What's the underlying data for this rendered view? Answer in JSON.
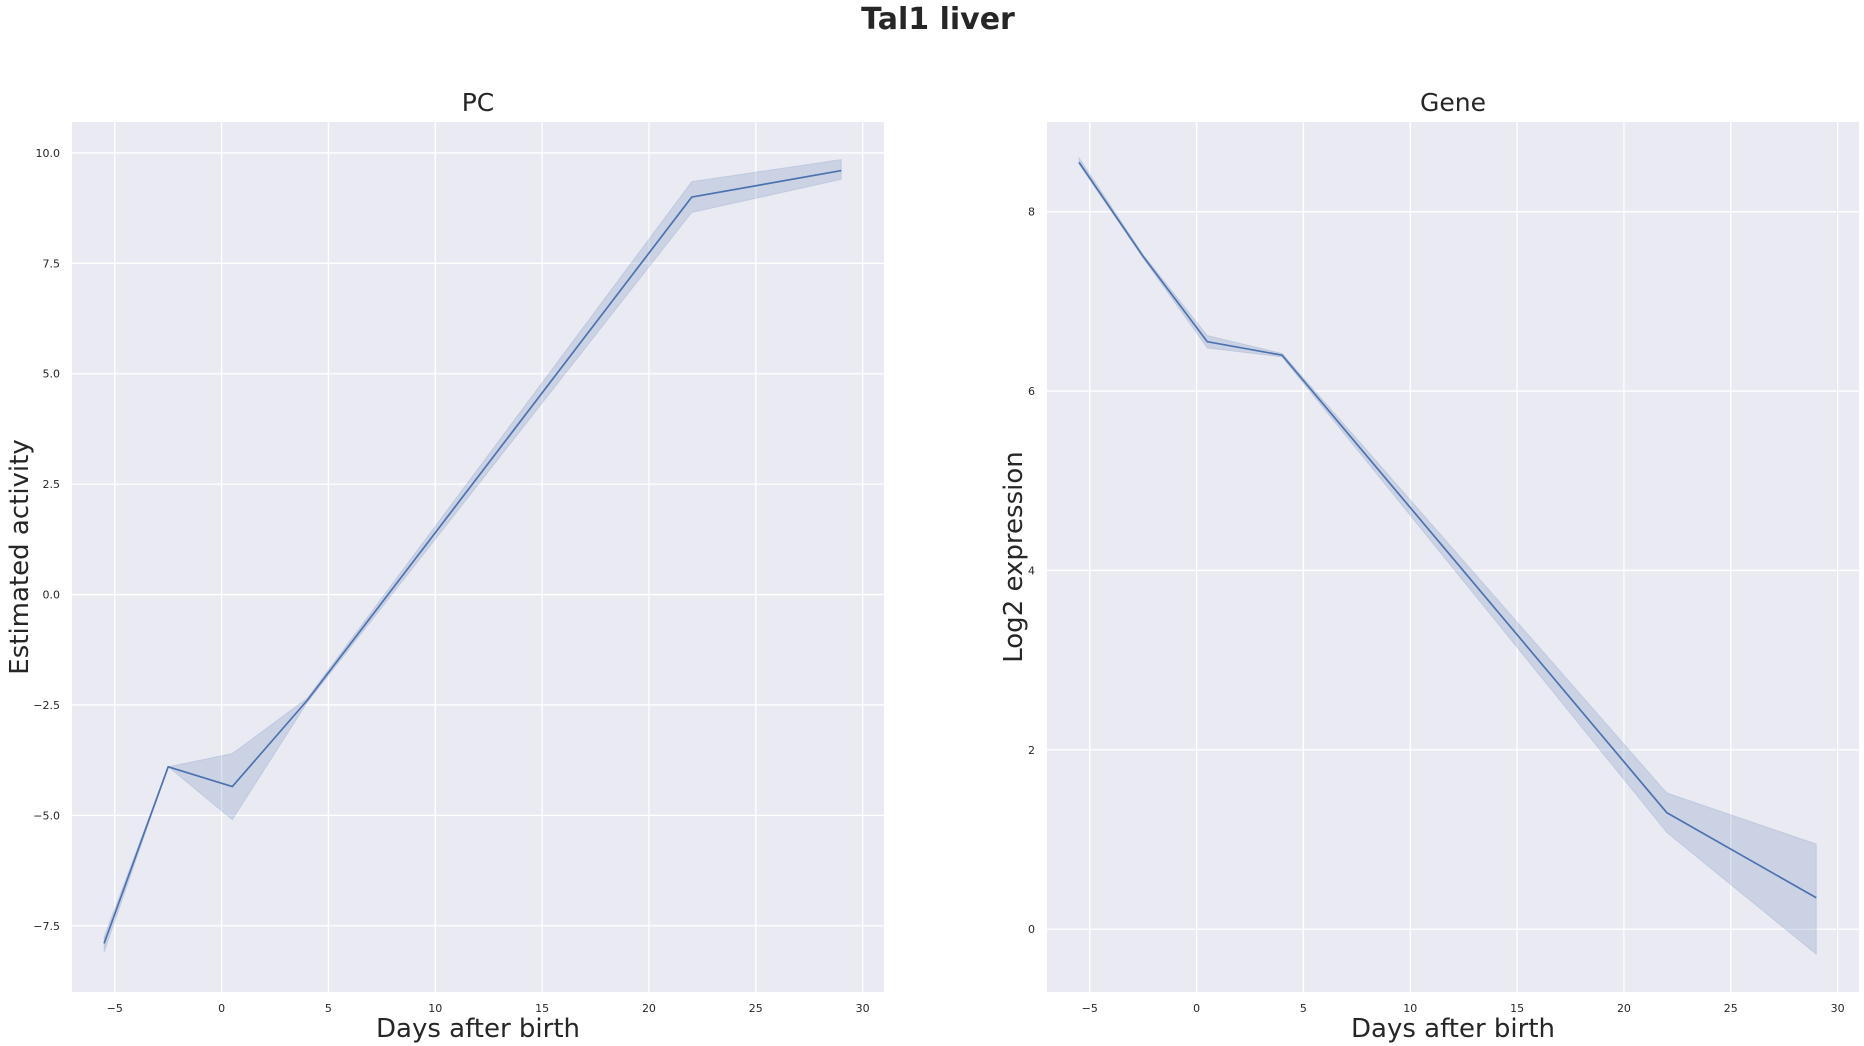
{
  "figure": {
    "title": "Tal1 liver"
  },
  "chart_data": [
    {
      "type": "line",
      "title": "PC",
      "xlabel": "Days after birth",
      "ylabel": "Estimated activity",
      "xlim": [
        -7,
        31
      ],
      "ylim": [
        -9,
        10.7
      ],
      "xticks": [
        -5,
        0,
        5,
        10,
        15,
        20,
        25,
        30
      ],
      "xtick_labels": [
        "−5",
        "0",
        "5",
        "10",
        "15",
        "20",
        "25",
        "30"
      ],
      "yticks": [
        -7.5,
        -5.0,
        -2.5,
        0.0,
        2.5,
        5.0,
        7.5,
        10.0
      ],
      "ytick_labels": [
        "−7.5",
        "−5.0",
        "−2.5",
        "0.0",
        "2.5",
        "5.0",
        "7.5",
        "10.0"
      ],
      "grid": true,
      "color": "#4c72b0",
      "series": [
        {
          "x": [
            -5.5,
            -2.5,
            0.5,
            4,
            22,
            29
          ],
          "y": [
            -7.9,
            -3.9,
            -4.35,
            -2.4,
            9.0,
            9.6
          ],
          "ci_low": [
            -8.1,
            -3.9,
            -5.1,
            -2.45,
            8.65,
            9.4
          ],
          "ci_high": [
            -7.75,
            -3.9,
            -3.6,
            -2.35,
            9.35,
            9.85
          ]
        }
      ]
    },
    {
      "type": "line",
      "title": "Gene",
      "xlabel": "Days after birth",
      "ylabel": "Log2 expression",
      "xlim": [
        -7,
        31
      ],
      "ylim": [
        -0.7,
        9.0
      ],
      "xticks": [
        -5,
        0,
        5,
        10,
        15,
        20,
        25,
        30
      ],
      "xtick_labels": [
        "−5",
        "0",
        "5",
        "10",
        "15",
        "20",
        "25",
        "30"
      ],
      "yticks": [
        0,
        2,
        4,
        6,
        8
      ],
      "ytick_labels": [
        "0",
        "2",
        "4",
        "6",
        "8"
      ],
      "grid": true,
      "color": "#4c72b0",
      "series": [
        {
          "x": [
            -5.5,
            -2.5,
            0.5,
            4,
            22,
            29
          ],
          "y": [
            8.55,
            7.5,
            6.55,
            6.4,
            1.3,
            0.35
          ],
          "ci_low": [
            8.53,
            7.48,
            6.48,
            6.38,
            1.08,
            -0.28
          ],
          "ci_high": [
            8.6,
            7.52,
            6.62,
            6.42,
            1.52,
            0.95
          ]
        }
      ]
    }
  ]
}
